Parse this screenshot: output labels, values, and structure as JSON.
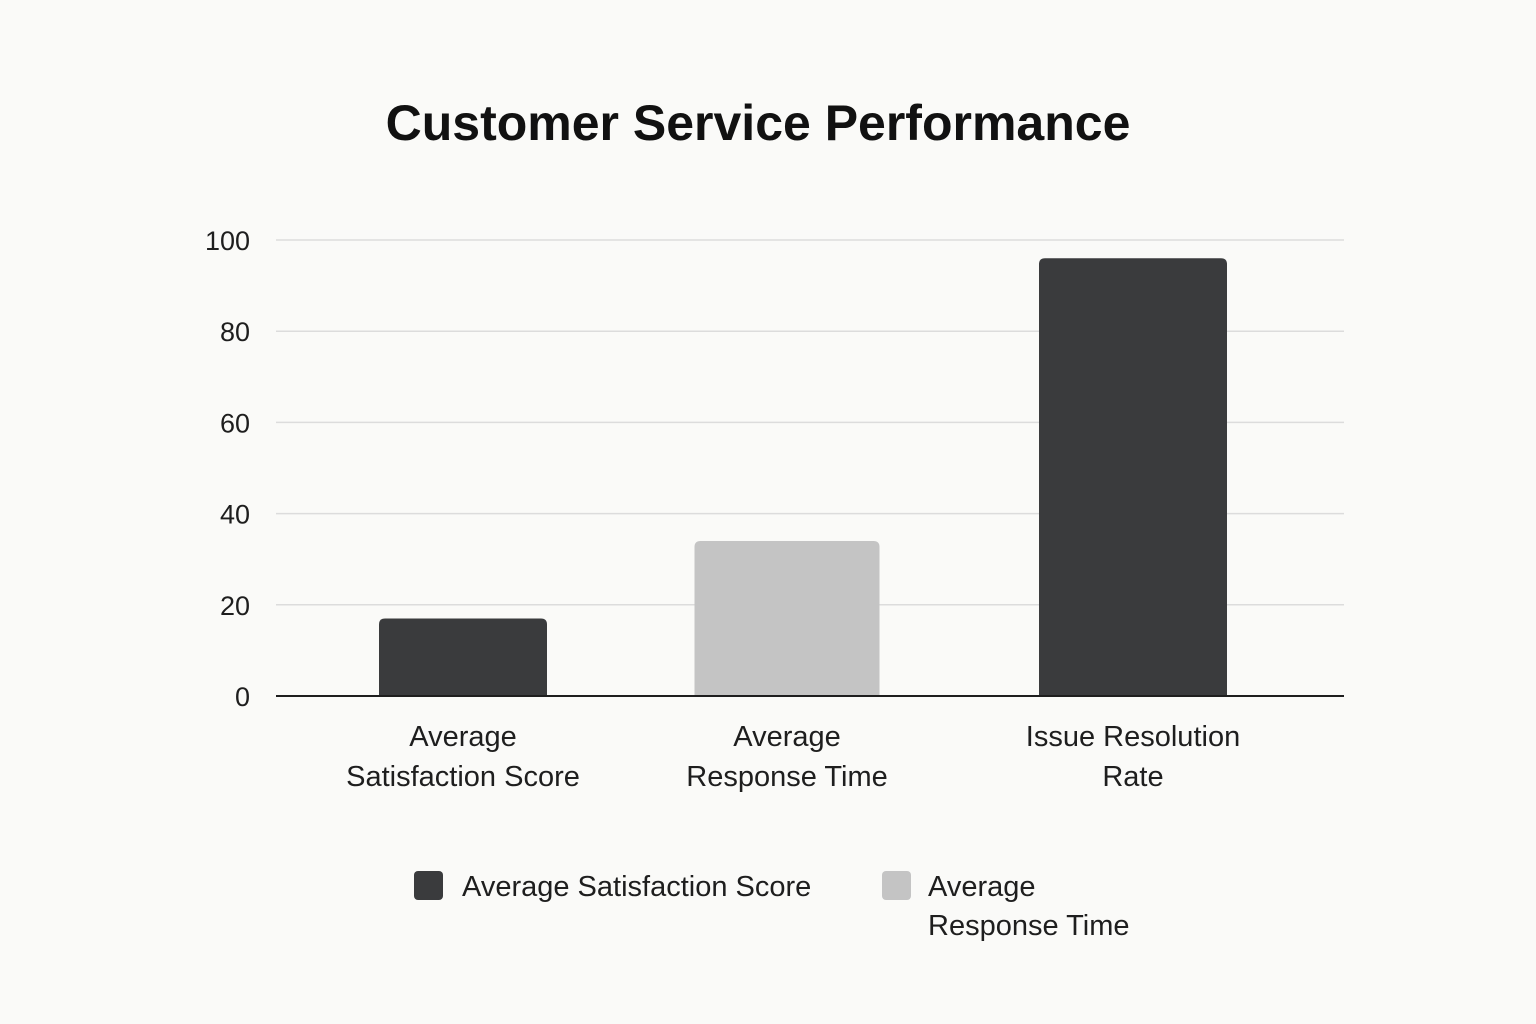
{
  "chart_data": {
    "type": "bar",
    "title": "Customer Service Performance",
    "xlabel": "",
    "ylabel": "",
    "ylim": [
      0,
      100
    ],
    "yticks": [
      0,
      20,
      40,
      60,
      80,
      100
    ],
    "grid": true,
    "legend_position": "bottom",
    "categories": [
      [
        "Average",
        "Satisfaction Score"
      ],
      [
        "Average",
        "Response Time"
      ],
      [
        "Issue Resolution",
        "Rate"
      ]
    ],
    "values": [
      17,
      34,
      96
    ],
    "bar_colors": [
      "#3a3b3d",
      "#c4c4c4",
      "#3a3b3d"
    ],
    "legend": [
      {
        "lines": [
          "Average Satisfaction Score"
        ],
        "color": "#3a3b3d"
      },
      {
        "lines": [
          "Average",
          "Response Time"
        ],
        "color": "#c4c4c4"
      }
    ]
  }
}
